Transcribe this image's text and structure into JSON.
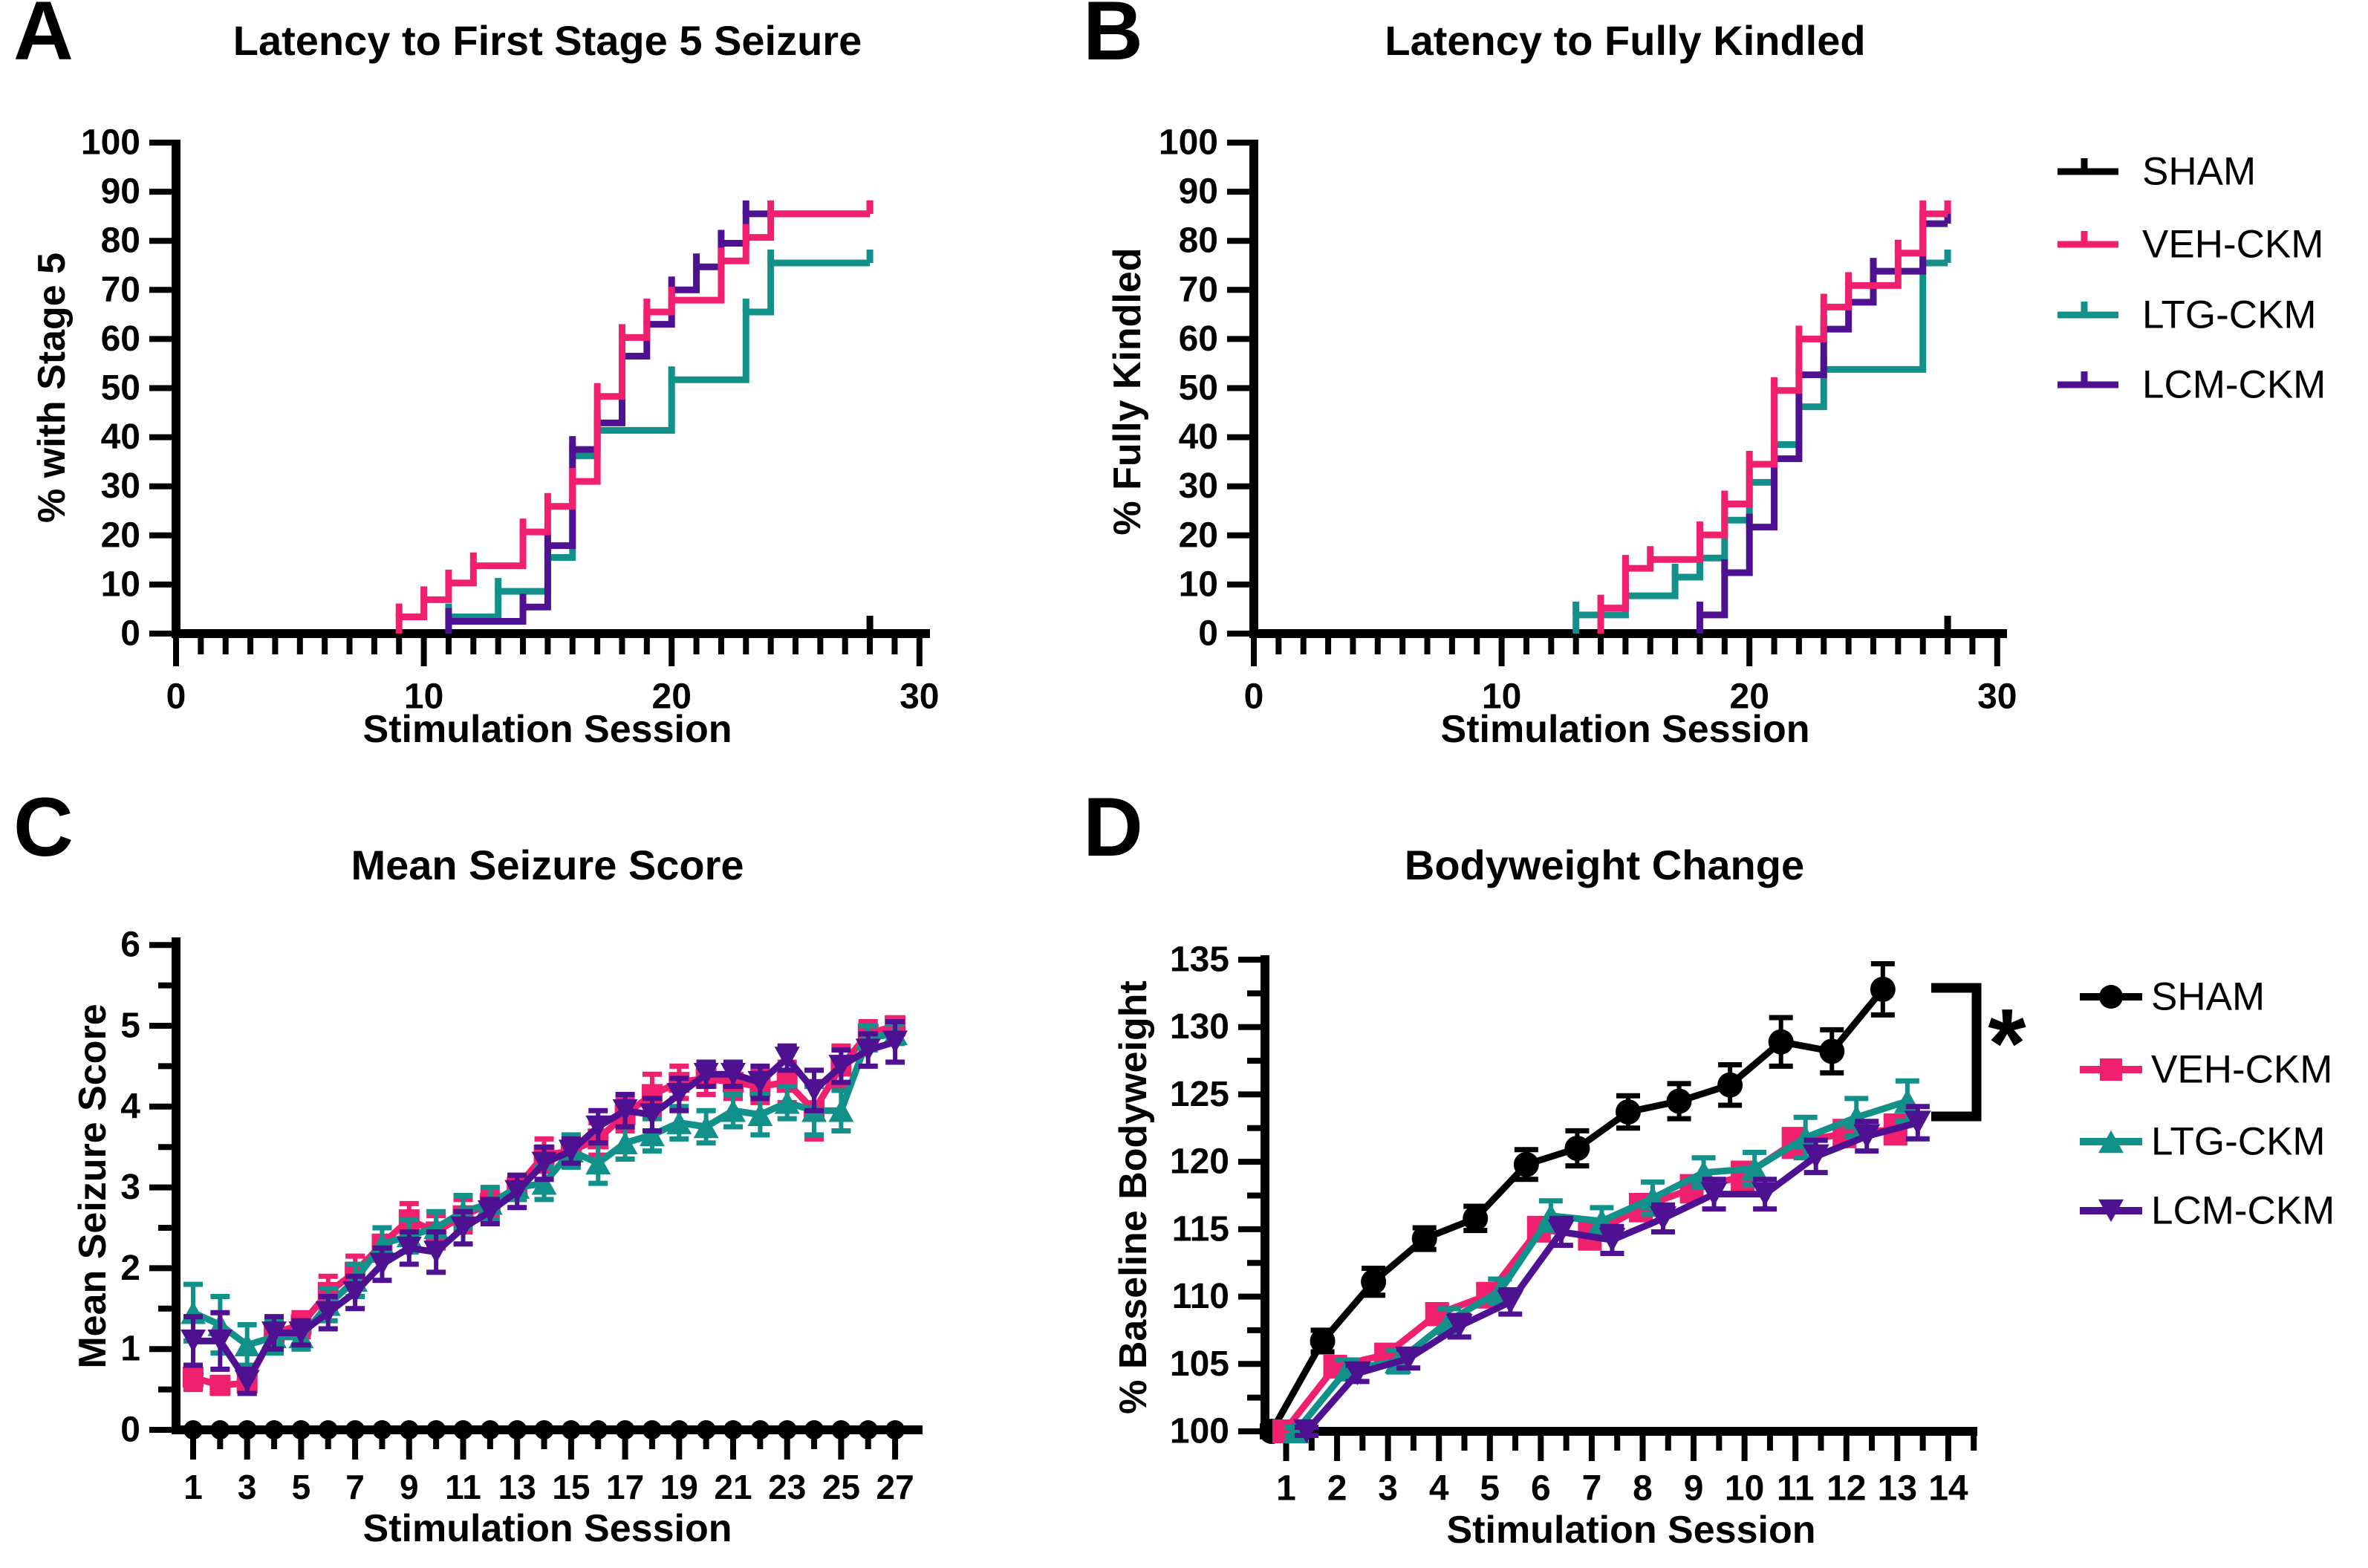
{
  "figure": {
    "background": "#ffffff"
  },
  "colors": {
    "sham": "#000000",
    "veh": "#F0206E",
    "ltg": "#12908A",
    "lcm": "#4E1191"
  },
  "legend_ab": {
    "items": [
      {
        "label": "SHAM",
        "color": "#000000",
        "marker": "km-tick"
      },
      {
        "label": "VEH-CKM",
        "color": "#F0206E",
        "marker": "km-tick"
      },
      {
        "label": "LTG-CKM",
        "color": "#12908A",
        "marker": "km-tick"
      },
      {
        "label": "LCM-CKM",
        "color": "#4E1191",
        "marker": "km-tick"
      }
    ]
  },
  "legend_d": {
    "items": [
      {
        "label": "SHAM",
        "color": "#000000",
        "marker": "circle"
      },
      {
        "label": "VEH-CKM",
        "color": "#F0206E",
        "marker": "square"
      },
      {
        "label": "LTG-CKM",
        "color": "#12908A",
        "marker": "triangle-up"
      },
      {
        "label": "LCM-CKM",
        "color": "#4E1191",
        "marker": "triangle-down"
      }
    ]
  },
  "chart_data": [
    {
      "id": "A",
      "letter": "A",
      "type": "km_step",
      "title": "Latency to First Stage 5 Seizure",
      "xlabel": "Stimulation Session",
      "ylabel": "% with Stage 5",
      "xlim": [
        0,
        30
      ],
      "ylim": [
        0,
        100
      ],
      "xticks_major": [
        0,
        10,
        20,
        30
      ],
      "xtick_minor_step": 1,
      "yticks_major": [
        0,
        10,
        20,
        30,
        40,
        50,
        60,
        70,
        80,
        90,
        100
      ],
      "series": [
        {
          "name": "SHAM",
          "color": "#000000",
          "steps": [],
          "start_x": 0,
          "end_x": 28
        },
        {
          "name": "LTG-CKM",
          "color": "#12908A",
          "end_x": 28,
          "steps": [
            [
              11,
              3.4
            ],
            [
              13,
              8.6
            ],
            [
              15,
              15.5
            ],
            [
              16,
              36.2
            ],
            [
              17,
              41.4
            ],
            [
              20,
              51.7
            ],
            [
              23,
              65.5
            ],
            [
              24,
              75.5
            ]
          ]
        },
        {
          "name": "LCM-CKM",
          "color": "#4E1191",
          "end_x": 28,
          "steps": [
            [
              11,
              2.5
            ],
            [
              14,
              5.4
            ],
            [
              15,
              17.9
            ],
            [
              16,
              37.5
            ],
            [
              17,
              42.9
            ],
            [
              18,
              56.5
            ],
            [
              19,
              63.0
            ],
            [
              20,
              70.0
            ],
            [
              21,
              74.7
            ],
            [
              22,
              79.5
            ],
            [
              23,
              85.5
            ]
          ]
        },
        {
          "name": "VEH-CKM",
          "color": "#F0206E",
          "end_x": 28,
          "steps": [
            [
              9,
              3.4
            ],
            [
              10,
              6.9
            ],
            [
              11,
              10.3
            ],
            [
              12,
              13.8
            ],
            [
              14,
              20.7
            ],
            [
              15,
              25.9
            ],
            [
              16,
              31.0
            ],
            [
              17,
              48.3
            ],
            [
              18,
              60.3
            ],
            [
              19,
              65.5
            ],
            [
              20,
              67.9
            ],
            [
              22,
              75.9
            ],
            [
              23,
              80.7
            ],
            [
              24,
              85.5
            ]
          ]
        }
      ]
    },
    {
      "id": "B",
      "letter": "B",
      "type": "km_step",
      "title": "Latency to Fully Kindled",
      "xlabel": "Stimulation Session",
      "ylabel": "% Fully Kindled",
      "xlim": [
        0,
        30
      ],
      "ylim": [
        0,
        100
      ],
      "xticks_major": [
        0,
        10,
        20,
        30
      ],
      "xtick_minor_step": 1,
      "yticks_major": [
        0,
        10,
        20,
        30,
        40,
        50,
        60,
        70,
        80,
        90,
        100
      ],
      "series": [
        {
          "name": "SHAM",
          "color": "#000000",
          "steps": [],
          "start_x": 0,
          "end_x": 28
        },
        {
          "name": "LTG-CKM",
          "color": "#12908A",
          "end_x": 28,
          "steps": [
            [
              13,
              3.8
            ],
            [
              15,
              7.7
            ],
            [
              17,
              11.5
            ],
            [
              18,
              15.4
            ],
            [
              19,
              23.1
            ],
            [
              20,
              30.8
            ],
            [
              21,
              38.5
            ],
            [
              22,
              46.2
            ],
            [
              23,
              53.8
            ],
            [
              27,
              75.5
            ]
          ]
        },
        {
          "name": "LCM-CKM",
          "color": "#4E1191",
          "end_x": 28,
          "steps": [
            [
              18,
              3.8
            ],
            [
              19,
              12.4
            ],
            [
              20,
              21.7
            ],
            [
              21,
              35.6
            ],
            [
              22,
              52.7
            ],
            [
              23,
              62.0
            ],
            [
              24,
              67.5
            ],
            [
              25,
              73.8
            ],
            [
              27,
              83.5
            ]
          ]
        },
        {
          "name": "VEH-CKM",
          "color": "#F0206E",
          "end_x": 28,
          "steps": [
            [
              14,
              5.2
            ],
            [
              15,
              13.3
            ],
            [
              16,
              15.1
            ],
            [
              18,
              20.1
            ],
            [
              19,
              26.4
            ],
            [
              20,
              34.5
            ],
            [
              21,
              49.5
            ],
            [
              22,
              60.0
            ],
            [
              23,
              66.5
            ],
            [
              24,
              70.9
            ],
            [
              26,
              77.5
            ],
            [
              27,
              85.5
            ]
          ]
        }
      ]
    },
    {
      "id": "C",
      "letter": "C",
      "type": "line",
      "title": "Mean Seizure Score",
      "xlabel": "Stimulation Session",
      "ylabel": "Mean Seizure Score",
      "x_values": [
        1,
        2,
        3,
        4,
        5,
        6,
        7,
        8,
        9,
        10,
        11,
        12,
        13,
        14,
        15,
        16,
        17,
        18,
        19,
        20,
        21,
        22,
        23,
        24,
        25,
        26,
        27
      ],
      "xticks_labeled": [
        1,
        3,
        5,
        7,
        9,
        11,
        13,
        15,
        17,
        19,
        21,
        23,
        25,
        27
      ],
      "ylim": [
        0,
        6
      ],
      "yticks_major": [
        0,
        1,
        2,
        3,
        4,
        5,
        6
      ],
      "series": [
        {
          "name": "SHAM",
          "color": "#000000",
          "marker": "circle",
          "values": [
            0,
            0,
            0,
            0,
            0,
            0,
            0,
            0,
            0,
            0,
            0,
            0,
            0,
            0,
            0,
            0,
            0,
            0,
            0,
            0,
            0,
            0,
            0,
            0,
            0,
            0,
            0
          ],
          "errors": [
            0,
            0,
            0,
            0,
            0,
            0,
            0,
            0,
            0,
            0,
            0,
            0,
            0,
            0,
            0,
            0,
            0,
            0,
            0,
            0,
            0,
            0,
            0,
            0,
            0,
            0,
            0
          ]
        },
        {
          "name": "VEH-CKM",
          "color": "#F0206E",
          "marker": "square",
          "values": [
            0.65,
            0.55,
            0.58,
            1.2,
            1.3,
            1.7,
            1.95,
            2.3,
            2.6,
            2.45,
            2.65,
            2.8,
            3.0,
            3.4,
            3.45,
            3.6,
            3.9,
            4.15,
            4.3,
            4.35,
            4.3,
            4.25,
            4.3,
            3.95,
            4.5,
            4.9,
            5.0
          ],
          "errors": [
            0.15,
            0.1,
            0.12,
            0.15,
            0.15,
            0.2,
            0.2,
            0.2,
            0.2,
            0.2,
            0.2,
            0.15,
            0.15,
            0.2,
            0.15,
            0.2,
            0.2,
            0.25,
            0.2,
            0.2,
            0.2,
            0.2,
            0.25,
            0.35,
            0.25,
            0.15,
            0.1
          ]
        },
        {
          "name": "LTG-CKM",
          "color": "#12908A",
          "marker": "triangle-up",
          "values": [
            1.45,
            1.3,
            1.05,
            1.15,
            1.15,
            1.55,
            1.85,
            2.3,
            2.4,
            2.5,
            2.7,
            2.8,
            3.0,
            3.05,
            3.45,
            3.3,
            3.55,
            3.65,
            3.8,
            3.75,
            3.95,
            3.9,
            4.05,
            3.95,
            3.95,
            4.85,
            4.9
          ],
          "errors": [
            0.35,
            0.35,
            0.25,
            0.2,
            0.15,
            0.2,
            0.2,
            0.2,
            0.2,
            0.2,
            0.2,
            0.2,
            0.15,
            0.2,
            0.2,
            0.25,
            0.2,
            0.2,
            0.2,
            0.2,
            0.2,
            0.25,
            0.2,
            0.3,
            0.25,
            0.15,
            0.12
          ]
        },
        {
          "name": "LCM-CKM",
          "color": "#4E1191",
          "marker": "triangle-down",
          "values": [
            1.1,
            1.1,
            0.6,
            1.2,
            1.2,
            1.45,
            1.7,
            2.05,
            2.25,
            2.2,
            2.5,
            2.7,
            2.95,
            3.3,
            3.45,
            3.75,
            3.95,
            3.9,
            4.15,
            4.4,
            4.4,
            4.3,
            4.6,
            4.2,
            4.5,
            4.7,
            4.8
          ],
          "errors": [
            0.3,
            0.35,
            0.15,
            0.2,
            0.15,
            0.2,
            0.2,
            0.2,
            0.2,
            0.25,
            0.2,
            0.15,
            0.2,
            0.2,
            0.15,
            0.2,
            0.2,
            0.2,
            0.2,
            0.15,
            0.15,
            0.2,
            0.15,
            0.25,
            0.2,
            0.2,
            0.25
          ]
        }
      ]
    },
    {
      "id": "D",
      "letter": "D",
      "type": "line",
      "title": "Bodyweight Change",
      "xlabel": "Stimulation Session",
      "ylabel": "% Baseline Bodyweight",
      "x_values": [
        1,
        2,
        3,
        4,
        5,
        6,
        7,
        8,
        9,
        10,
        11,
        12,
        13
      ],
      "xticks_labeled": [
        1,
        2,
        3,
        4,
        5,
        6,
        7,
        8,
        9,
        10,
        11,
        12,
        13,
        14
      ],
      "ylim": [
        100,
        135
      ],
      "yticks_major": [
        100,
        105,
        110,
        115,
        120,
        125,
        130,
        135
      ],
      "annotation": {
        "text": "*"
      },
      "series": [
        {
          "name": "SHAM",
          "color": "#000000",
          "marker": "circle",
          "values": [
            100,
            106.7,
            111.1,
            114.3,
            115.8,
            119.8,
            121.0,
            123.7,
            124.5,
            125.7,
            128.9,
            128.2,
            132.8
          ],
          "errors": [
            0.4,
            0.8,
            1.0,
            0.8,
            0.9,
            1.1,
            1.3,
            1.2,
            1.3,
            1.5,
            1.8,
            1.6,
            1.9
          ]
        },
        {
          "name": "VEH-CKM",
          "color": "#F0206E",
          "marker": "square",
          "values": [
            100,
            104.8,
            105.7,
            108.7,
            110.1,
            115.0,
            114.5,
            116.6,
            118.0,
            118.9,
            121.4,
            122.1,
            122.4
          ],
          "errors": [
            0.3,
            0.6,
            0.6,
            0.7,
            0.8,
            0.8,
            0.9,
            0.9,
            0.9,
            1.0,
            1.0,
            0.9,
            1.0
          ]
        },
        {
          "name": "LTG-CKM",
          "color": "#12908A",
          "marker": "triangle-up",
          "values": [
            100,
            104.6,
            105.2,
            108.2,
            110.4,
            116.0,
            115.6,
            117.3,
            119.2,
            119.5,
            121.8,
            123.3,
            124.5
          ],
          "errors": [
            0.3,
            0.7,
            0.8,
            0.9,
            0.9,
            1.1,
            1.0,
            1.2,
            1.1,
            1.2,
            1.5,
            1.4,
            1.5
          ]
        },
        {
          "name": "LCM-CKM",
          "color": "#4E1191",
          "marker": "triangle-down",
          "values": [
            100,
            104.3,
            105.4,
            107.8,
            109.6,
            114.8,
            114.2,
            115.8,
            117.6,
            117.6,
            120.4,
            121.9,
            122.9
          ],
          "errors": [
            0.3,
            0.6,
            0.7,
            0.8,
            0.9,
            1.0,
            1.0,
            1.0,
            1.1,
            1.1,
            1.2,
            1.1,
            1.2
          ]
        }
      ]
    }
  ]
}
